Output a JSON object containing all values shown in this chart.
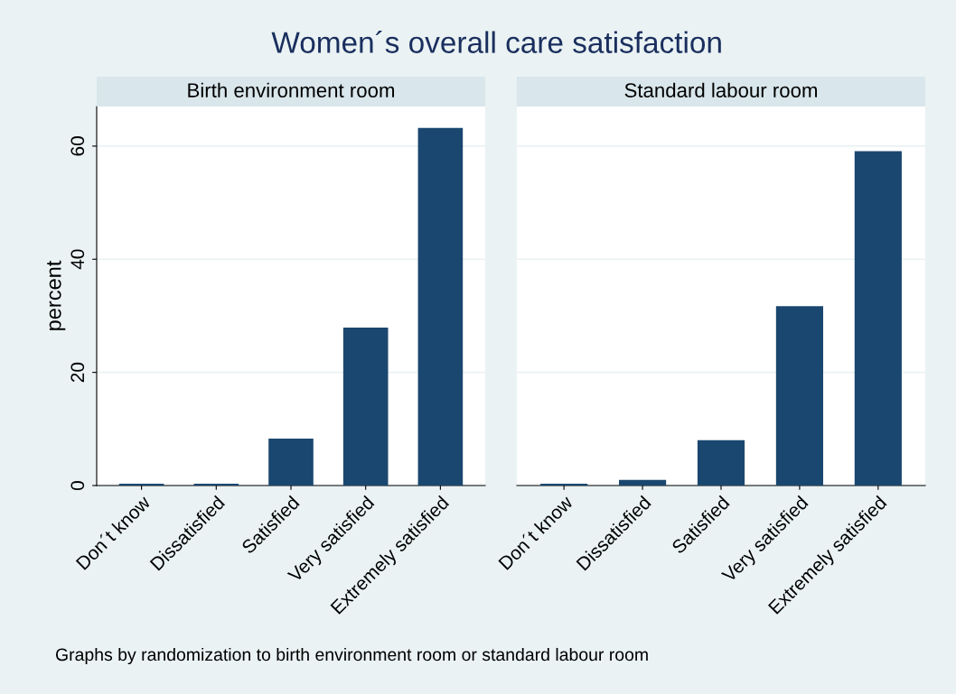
{
  "chart_data": [
    {
      "type": "bar",
      "title": "Women´s overall care satisfaction",
      "subtitle": "Birth environment room",
      "ylabel": "percent",
      "categories": [
        "Don´t know",
        "Dissatisfied",
        "Satisfied",
        "Very satisfied",
        "Extremely satisfied"
      ],
      "values": [
        0.3,
        0.3,
        8.3,
        27.9,
        63.2
      ],
      "color": "#1a476f",
      "ylim": [
        0,
        67
      ],
      "yticks": [
        0,
        20,
        40,
        60
      ],
      "grid": "y",
      "annotations": [
        "Graphs by randomization to birth environment room or standard labour room"
      ]
    },
    {
      "type": "bar",
      "subtitle": "Standard labour room",
      "categories": [
        "Don´t know",
        "Dissatisfied",
        "Satisfied",
        "Very satisfied",
        "Extremely satisfied"
      ],
      "values": [
        0.3,
        1.0,
        8.0,
        31.7,
        59.1
      ],
      "color": "#1a476f",
      "ylim": [
        0,
        67
      ],
      "yticks": [
        0,
        20,
        40,
        60
      ],
      "grid": "y",
      "tick_labels": "x"
    }
  ]
}
